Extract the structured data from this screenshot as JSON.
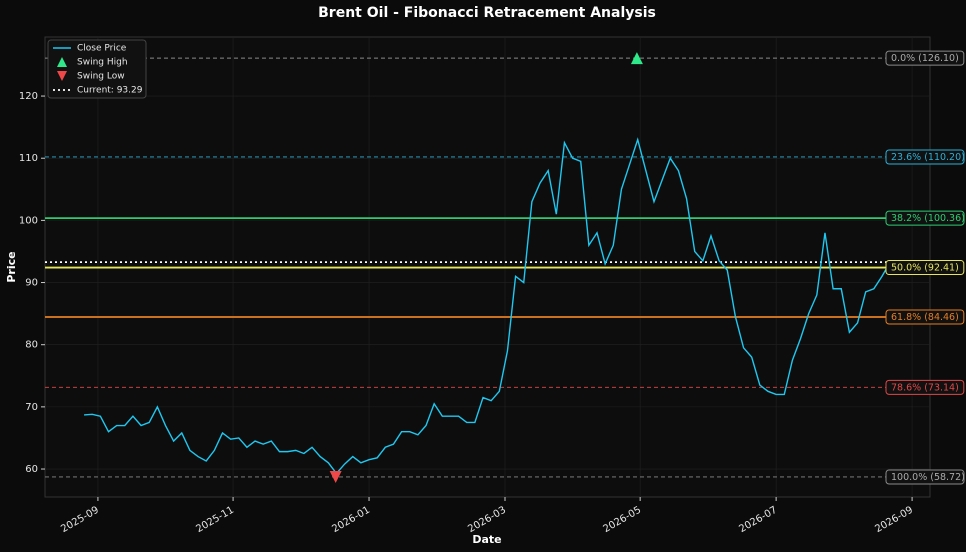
{
  "chart_data": {
    "type": "line",
    "title": "Brent Oil - Fibonacci Retracement Analysis",
    "x_label": "Date",
    "y_label": "Price",
    "xlim": [
      2025.602,
      2026.689
    ],
    "ylim": [
      55.5,
      129.5
    ],
    "xticks": [
      {
        "value": 2025.667,
        "label": "2025-09"
      },
      {
        "value": 2025.833,
        "label": "2025-11"
      },
      {
        "value": 2026.0,
        "label": "2026-01"
      },
      {
        "value": 2026.167,
        "label": "2026-03"
      },
      {
        "value": 2026.333,
        "label": "2026-05"
      },
      {
        "value": 2026.5,
        "label": "2026-07"
      },
      {
        "value": 2026.667,
        "label": "2026-09"
      }
    ],
    "yticks": [
      60,
      70,
      80,
      90,
      100,
      110,
      120
    ],
    "grid": true,
    "legend": "upper left",
    "series": [
      {
        "name": "Close Price",
        "type": "line",
        "color": "#1ec8f0",
        "x": [
          2025.65,
          2025.66,
          2025.67,
          2025.68,
          2025.69,
          2025.7,
          2025.71,
          2025.72,
          2025.73,
          2025.74,
          2025.75,
          2025.76,
          2025.77,
          2025.78,
          2025.79,
          2025.8,
          2025.81,
          2025.82,
          2025.83,
          2025.84,
          2025.85,
          2025.86,
          2025.87,
          2025.88,
          2025.89,
          2025.9,
          2025.91,
          2025.92,
          2025.93,
          2025.94,
          2025.95,
          2025.96,
          2025.97,
          2025.98,
          2025.99,
          2026.0,
          2026.01,
          2026.02,
          2026.03,
          2026.04,
          2026.05,
          2026.06,
          2026.07,
          2026.08,
          2026.09,
          2026.1,
          2026.11,
          2026.12,
          2026.13,
          2026.14,
          2026.15,
          2026.16,
          2026.17,
          2026.18,
          2026.19,
          2026.2,
          2026.21,
          2026.22,
          2026.23,
          2026.24,
          2026.25,
          2026.26,
          2026.27,
          2026.28,
          2026.29,
          2026.3,
          2026.31,
          2026.32,
          2026.33,
          2026.34,
          2026.35,
          2026.36,
          2026.37,
          2026.38,
          2026.39,
          2026.4,
          2026.41,
          2026.42,
          2026.43,
          2026.44,
          2026.45,
          2026.46,
          2026.47,
          2026.48,
          2026.49,
          2026.5,
          2026.51,
          2026.52,
          2026.53,
          2026.54,
          2026.55,
          2026.56,
          2026.57,
          2026.58,
          2026.59,
          2026.6,
          2026.61,
          2026.62,
          2026.63,
          2026.64
        ],
        "values": [
          68.7,
          68.8,
          68.5,
          66,
          67,
          67,
          68.5,
          67,
          67.5,
          70,
          67,
          64.5,
          65.8,
          63,
          62,
          61.3,
          63,
          65.8,
          64.8,
          65,
          63.5,
          64.5,
          64,
          64.5,
          62.8,
          62.8,
          63,
          62.5,
          63.5,
          62,
          61,
          59.3,
          60.8,
          62,
          61,
          61.5,
          61.8,
          63.5,
          64,
          66,
          66,
          65.5,
          67,
          70.5,
          68.5,
          68.5,
          68.5,
          67.5,
          67.5,
          71.5,
          71,
          72.5,
          79,
          91,
          90,
          103,
          106,
          108,
          101,
          112.5,
          110,
          109.5,
          96,
          98,
          93,
          96,
          105,
          109,
          113,
          108,
          103,
          106.5,
          110,
          108,
          103.5,
          95,
          93.5,
          97.5,
          93.5,
          92,
          84.5,
          79.5,
          78,
          73.5,
          72.5,
          72,
          72,
          77.5,
          81,
          85,
          88,
          98,
          89,
          89,
          82,
          83.5,
          88.5,
          89,
          91,
          93.29
        ]
      },
      {
        "name": "Swing High",
        "type": "scatter",
        "marker": "triangle-up",
        "color": "#2ee88a",
        "x": [
          2026.329
        ],
        "values": [
          126.1
        ]
      },
      {
        "name": "Swing Low",
        "type": "scatter",
        "marker": "triangle-down",
        "color": "#f04848",
        "x": [
          2025.959
        ],
        "values": [
          58.72
        ]
      }
    ],
    "current": {
      "name": "Current: 93.29",
      "value": 93.29,
      "color": "#ffffff"
    },
    "fib_levels": [
      {
        "label": "0.0% (126.10)",
        "value": 126.1,
        "color": "#8a8a8a",
        "style": "dashed"
      },
      {
        "label": "23.6% (110.20)",
        "value": 110.2,
        "color": "#2ab0d8",
        "style": "dashed"
      },
      {
        "label": "38.2% (100.36)",
        "value": 100.36,
        "color": "#2ecc71",
        "style": "solid"
      },
      {
        "label": "50.0% (92.41)",
        "value": 92.41,
        "color": "#e6e65a",
        "style": "solid"
      },
      {
        "label": "61.8% (84.46)",
        "value": 84.46,
        "color": "#e67e22",
        "style": "solid"
      },
      {
        "label": "78.6% (73.14)",
        "value": 73.14,
        "color": "#e04848",
        "style": "dashed"
      },
      {
        "label": "100.0% (58.72)",
        "value": 58.72,
        "color": "#8a8a8a",
        "style": "dashed"
      }
    ]
  }
}
